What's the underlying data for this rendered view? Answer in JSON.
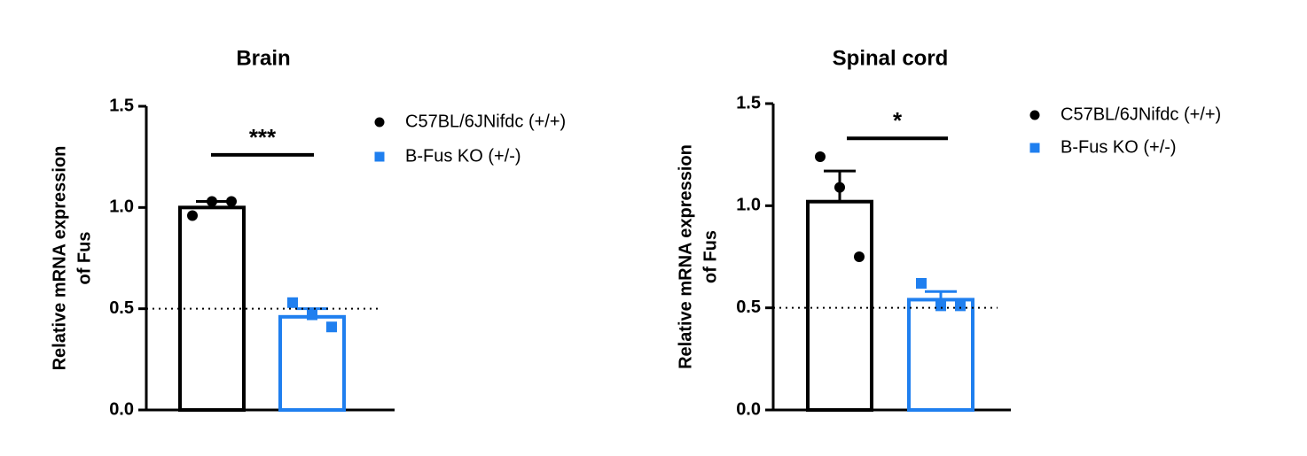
{
  "chart_data": [
    {
      "type": "bar",
      "title": "Brain",
      "ylabel": [
        "Relative mRNA expression",
        "of Fus"
      ],
      "ylim": [
        0,
        1.5
      ],
      "yticks": [
        {
          "value": 0,
          "label": "0.0"
        },
        0.5,
        {
          "value": 1,
          "label": "1.0"
        },
        1.5
      ],
      "reference_line": 0.5,
      "annotation": {
        "text": "***",
        "y": 1.26
      },
      "series": [
        {
          "name": "C57BL/6JNifdc (+/+)",
          "color": "#000000",
          "marker": "circle",
          "value": 1.0,
          "error": 0.03,
          "points": [
            0.96,
            1.03,
            1.03
          ]
        },
        {
          "name": "B-Fus KO (+/-)",
          "color": "#1f7fef",
          "marker": "square",
          "value": 0.46,
          "error": 0.04,
          "points": [
            0.53,
            0.47,
            0.41
          ]
        }
      ]
    },
    {
      "type": "bar",
      "title": "Spinal cord",
      "ylabel": [
        "Relative mRNA expression",
        "of Fus"
      ],
      "ylim": [
        0,
        1.5
      ],
      "yticks": [
        {
          "value": 0,
          "label": "0.0"
        },
        0.5,
        {
          "value": 1,
          "label": "1.0"
        },
        1.5
      ],
      "reference_line": 0.5,
      "annotation": {
        "text": "*",
        "y": 1.33
      },
      "series": [
        {
          "name": "C57BL/6JNifdc (+/+)",
          "color": "#000000",
          "marker": "circle",
          "value": 1.02,
          "error": 0.15,
          "points": [
            1.24,
            1.09,
            0.75
          ]
        },
        {
          "name": "B-Fus KO (+/-)",
          "color": "#1f7fef",
          "marker": "square",
          "value": 0.54,
          "error": 0.04,
          "points": [
            0.62,
            0.51,
            0.51
          ]
        }
      ]
    }
  ]
}
